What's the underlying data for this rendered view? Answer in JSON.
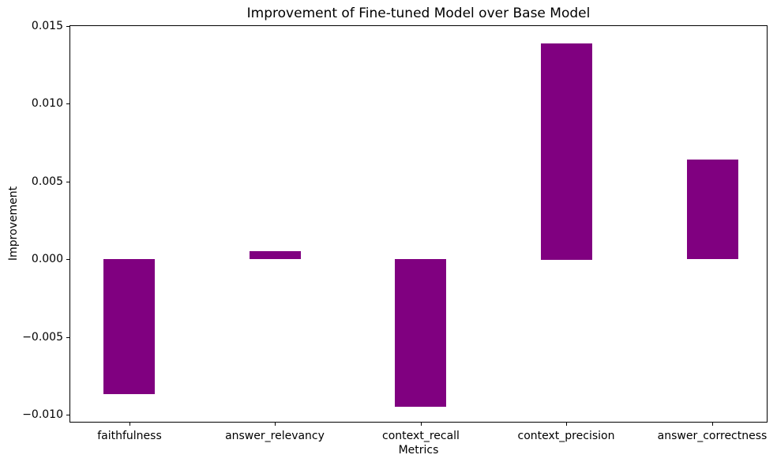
{
  "chart_data": {
    "type": "bar",
    "title": "Improvement of Fine-tuned Model over Base Model",
    "xlabel": "Metrics",
    "ylabel": "Improvement",
    "categories": [
      "faithfulness",
      "answer_relevancy",
      "context_recall",
      "context_precision",
      "answer_correctness"
    ],
    "values": [
      -0.0087,
      0.0005,
      -0.0095,
      0.0139,
      0.0064
    ],
    "bar_color": "#800080",
    "background_color": "#ffffff",
    "text_color": "#000000",
    "ylim": [
      -0.0105,
      0.01505
    ],
    "xlim": [
      -0.41,
      4.38
    ],
    "ytick_values": [
      0.015,
      0.01,
      0.005,
      0.0,
      -0.005,
      -0.01
    ],
    "ytick_labels": [
      "0.015",
      "0.010",
      "0.005",
      "0.000",
      "−0.005",
      "−0.010"
    ],
    "bar_width_fraction": 0.35,
    "grid": false,
    "legend": null
  }
}
